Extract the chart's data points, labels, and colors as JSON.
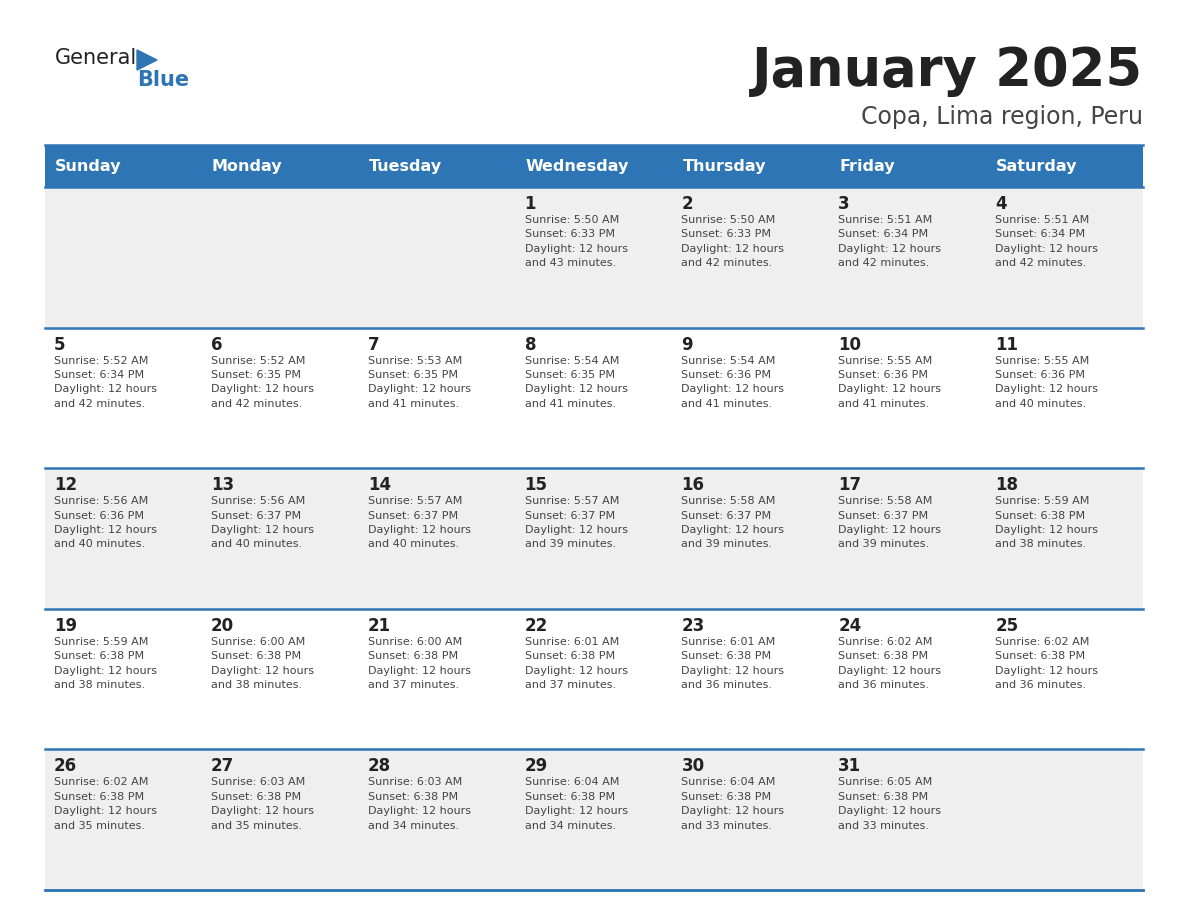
{
  "title": "January 2025",
  "subtitle": "Copa, Lima region, Peru",
  "header_color": "#2E75B6",
  "header_text_color": "#FFFFFF",
  "days_of_week": [
    "Sunday",
    "Monday",
    "Tuesday",
    "Wednesday",
    "Thursday",
    "Friday",
    "Saturday"
  ],
  "weeks": [
    [
      {
        "day": "",
        "info": ""
      },
      {
        "day": "",
        "info": ""
      },
      {
        "day": "",
        "info": ""
      },
      {
        "day": "1",
        "info": "Sunrise: 5:50 AM\nSunset: 6:33 PM\nDaylight: 12 hours\nand 43 minutes."
      },
      {
        "day": "2",
        "info": "Sunrise: 5:50 AM\nSunset: 6:33 PM\nDaylight: 12 hours\nand 42 minutes."
      },
      {
        "day": "3",
        "info": "Sunrise: 5:51 AM\nSunset: 6:34 PM\nDaylight: 12 hours\nand 42 minutes."
      },
      {
        "day": "4",
        "info": "Sunrise: 5:51 AM\nSunset: 6:34 PM\nDaylight: 12 hours\nand 42 minutes."
      }
    ],
    [
      {
        "day": "5",
        "info": "Sunrise: 5:52 AM\nSunset: 6:34 PM\nDaylight: 12 hours\nand 42 minutes."
      },
      {
        "day": "6",
        "info": "Sunrise: 5:52 AM\nSunset: 6:35 PM\nDaylight: 12 hours\nand 42 minutes."
      },
      {
        "day": "7",
        "info": "Sunrise: 5:53 AM\nSunset: 6:35 PM\nDaylight: 12 hours\nand 41 minutes."
      },
      {
        "day": "8",
        "info": "Sunrise: 5:54 AM\nSunset: 6:35 PM\nDaylight: 12 hours\nand 41 minutes."
      },
      {
        "day": "9",
        "info": "Sunrise: 5:54 AM\nSunset: 6:36 PM\nDaylight: 12 hours\nand 41 minutes."
      },
      {
        "day": "10",
        "info": "Sunrise: 5:55 AM\nSunset: 6:36 PM\nDaylight: 12 hours\nand 41 minutes."
      },
      {
        "day": "11",
        "info": "Sunrise: 5:55 AM\nSunset: 6:36 PM\nDaylight: 12 hours\nand 40 minutes."
      }
    ],
    [
      {
        "day": "12",
        "info": "Sunrise: 5:56 AM\nSunset: 6:36 PM\nDaylight: 12 hours\nand 40 minutes."
      },
      {
        "day": "13",
        "info": "Sunrise: 5:56 AM\nSunset: 6:37 PM\nDaylight: 12 hours\nand 40 minutes."
      },
      {
        "day": "14",
        "info": "Sunrise: 5:57 AM\nSunset: 6:37 PM\nDaylight: 12 hours\nand 40 minutes."
      },
      {
        "day": "15",
        "info": "Sunrise: 5:57 AM\nSunset: 6:37 PM\nDaylight: 12 hours\nand 39 minutes."
      },
      {
        "day": "16",
        "info": "Sunrise: 5:58 AM\nSunset: 6:37 PM\nDaylight: 12 hours\nand 39 minutes."
      },
      {
        "day": "17",
        "info": "Sunrise: 5:58 AM\nSunset: 6:37 PM\nDaylight: 12 hours\nand 39 minutes."
      },
      {
        "day": "18",
        "info": "Sunrise: 5:59 AM\nSunset: 6:38 PM\nDaylight: 12 hours\nand 38 minutes."
      }
    ],
    [
      {
        "day": "19",
        "info": "Sunrise: 5:59 AM\nSunset: 6:38 PM\nDaylight: 12 hours\nand 38 minutes."
      },
      {
        "day": "20",
        "info": "Sunrise: 6:00 AM\nSunset: 6:38 PM\nDaylight: 12 hours\nand 38 minutes."
      },
      {
        "day": "21",
        "info": "Sunrise: 6:00 AM\nSunset: 6:38 PM\nDaylight: 12 hours\nand 37 minutes."
      },
      {
        "day": "22",
        "info": "Sunrise: 6:01 AM\nSunset: 6:38 PM\nDaylight: 12 hours\nand 37 minutes."
      },
      {
        "day": "23",
        "info": "Sunrise: 6:01 AM\nSunset: 6:38 PM\nDaylight: 12 hours\nand 36 minutes."
      },
      {
        "day": "24",
        "info": "Sunrise: 6:02 AM\nSunset: 6:38 PM\nDaylight: 12 hours\nand 36 minutes."
      },
      {
        "day": "25",
        "info": "Sunrise: 6:02 AM\nSunset: 6:38 PM\nDaylight: 12 hours\nand 36 minutes."
      }
    ],
    [
      {
        "day": "26",
        "info": "Sunrise: 6:02 AM\nSunset: 6:38 PM\nDaylight: 12 hours\nand 35 minutes."
      },
      {
        "day": "27",
        "info": "Sunrise: 6:03 AM\nSunset: 6:38 PM\nDaylight: 12 hours\nand 35 minutes."
      },
      {
        "day": "28",
        "info": "Sunrise: 6:03 AM\nSunset: 6:38 PM\nDaylight: 12 hours\nand 34 minutes."
      },
      {
        "day": "29",
        "info": "Sunrise: 6:04 AM\nSunset: 6:38 PM\nDaylight: 12 hours\nand 34 minutes."
      },
      {
        "day": "30",
        "info": "Sunrise: 6:04 AM\nSunset: 6:38 PM\nDaylight: 12 hours\nand 33 minutes."
      },
      {
        "day": "31",
        "info": "Sunrise: 6:05 AM\nSunset: 6:38 PM\nDaylight: 12 hours\nand 33 minutes."
      },
      {
        "day": "",
        "info": ""
      }
    ]
  ],
  "cell_bg_color": "#EFEFEF",
  "cell_alt_color": "#FFFFFF",
  "border_color": "#2E75B6",
  "text_color": "#444444",
  "day_num_color": "#222222",
  "title_color": "#222222",
  "subtitle_color": "#444444",
  "logo_general_color": "#222222",
  "logo_blue_color": "#2E75B6"
}
